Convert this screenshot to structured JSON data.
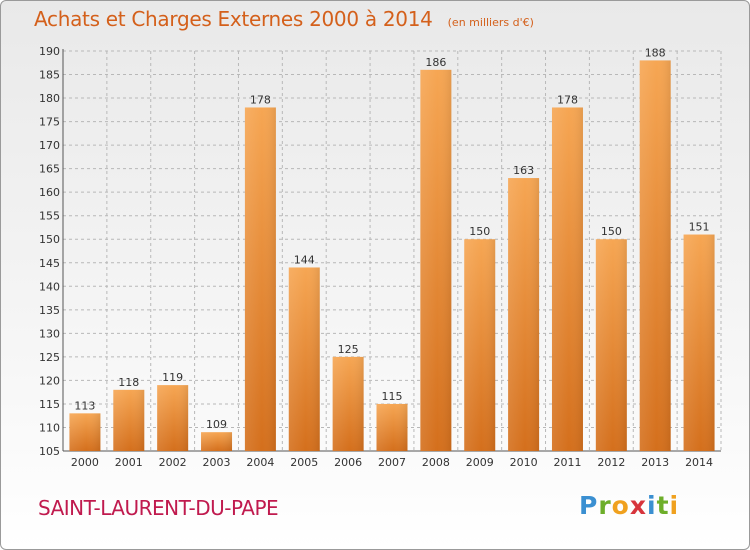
{
  "header": {
    "title": "Achats et Charges Externes 2000 à 2014",
    "unit": "(en milliers d'€)"
  },
  "footer": {
    "commune": "SAINT-LAURENT-DU-PAPE",
    "logo_letters": [
      "P",
      "r",
      "o",
      "x",
      "i",
      "t",
      "i"
    ],
    "logo_colors": [
      "#3a8fd1",
      "#6dae2a",
      "#f0a11e",
      "#d7343c",
      "#3a8fd1",
      "#6dae2a",
      "#f0a11e"
    ]
  },
  "colors": {
    "bar_light": "#f6a653",
    "bar_dark": "#d46f1c",
    "grid": "#b8b8b8",
    "title": "#d4601b",
    "commune": "#c01a4e"
  },
  "chart_data": {
    "type": "bar",
    "title": "Achats et Charges Externes 2000 à 2014",
    "xlabel": "",
    "ylabel": "",
    "categories": [
      "2000",
      "2001",
      "2002",
      "2003",
      "2004",
      "2005",
      "2006",
      "2007",
      "2008",
      "2009",
      "2010",
      "2011",
      "2012",
      "2013",
      "2014"
    ],
    "values": [
      113,
      118,
      119,
      109,
      178,
      144,
      125,
      115,
      186,
      150,
      163,
      178,
      150,
      188,
      151
    ],
    "ylim": [
      105,
      190
    ],
    "yticks": [
      105,
      110,
      115,
      120,
      125,
      130,
      135,
      140,
      145,
      150,
      155,
      160,
      165,
      170,
      175,
      180,
      185,
      190
    ],
    "grid": true,
    "grid_style": "dashed"
  }
}
